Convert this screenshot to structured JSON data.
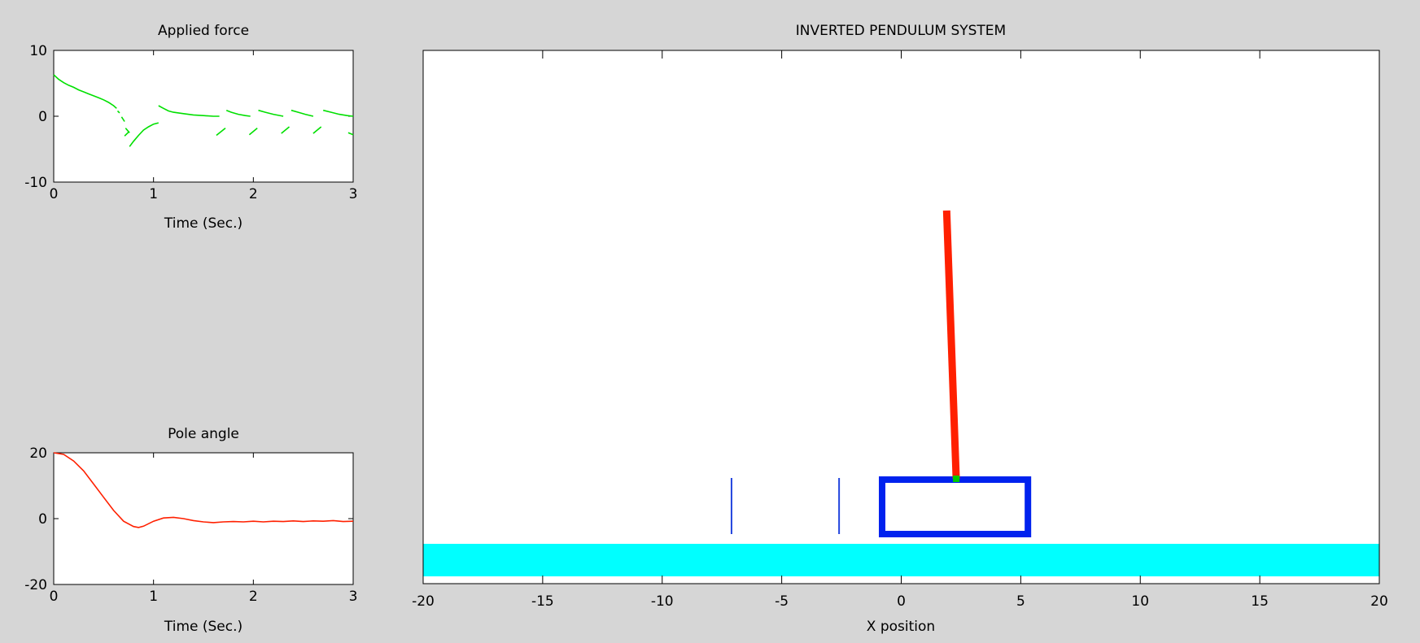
{
  "chart_data": [
    {
      "type": "line",
      "title": "Applied force",
      "xlabel": "Time (Sec.)",
      "ylabel": "",
      "xlim": [
        0,
        3
      ],
      "ylim": [
        -10,
        10
      ],
      "xticks": [
        "0",
        "1",
        "2",
        "3"
      ],
      "yticks": [
        "10",
        "0",
        "-10"
      ],
      "color": "#00e000",
      "segments": [
        {
          "x": [
            0,
            0.05,
            0.1,
            0.15,
            0.2,
            0.25,
            0.3,
            0.35,
            0.4,
            0.45,
            0.5,
            0.55,
            0.6,
            0.63
          ],
          "y": [
            6.3,
            5.6,
            5.1,
            4.7,
            4.4,
            4.0,
            3.7,
            3.4,
            3.1,
            2.8,
            2.5,
            2.1,
            1.6,
            1.2
          ]
        },
        {
          "x": [
            0.64,
            0.66
          ],
          "y": [
            0.8,
            0.5
          ]
        },
        {
          "x": [
            0.68,
            0.71
          ],
          "y": [
            -0.1,
            -0.8
          ]
        },
        {
          "x": [
            0.72,
            0.76
          ],
          "y": [
            -1.8,
            -2.5
          ]
        },
        {
          "x": [
            0.71,
            0.75
          ],
          "y": [
            -3.0,
            -2.4
          ]
        },
        {
          "x": [
            0.76,
            0.8,
            0.85,
            0.9,
            0.95,
            1.0,
            1.05
          ],
          "y": [
            -4.6,
            -3.8,
            -2.9,
            -2.1,
            -1.6,
            -1.2,
            -1.0
          ]
        },
        {
          "x": [
            1.05,
            1.1,
            1.15,
            1.2,
            1.3,
            1.4,
            1.5,
            1.6,
            1.66
          ],
          "y": [
            1.6,
            1.2,
            0.8,
            0.6,
            0.4,
            0.2,
            0.1,
            0.0,
            0.0
          ]
        },
        {
          "x": [
            1.63,
            1.72
          ],
          "y": [
            -2.9,
            -1.8
          ]
        },
        {
          "x": [
            1.73,
            1.78,
            1.85,
            1.92,
            1.97
          ],
          "y": [
            0.9,
            0.6,
            0.3,
            0.1,
            0.0
          ]
        },
        {
          "x": [
            1.96,
            2.04
          ],
          "y": [
            -2.8,
            -1.8
          ]
        },
        {
          "x": [
            2.05,
            2.12,
            2.2,
            2.3
          ],
          "y": [
            0.9,
            0.6,
            0.3,
            0.0
          ]
        },
        {
          "x": [
            2.28,
            2.36
          ],
          "y": [
            -2.6,
            -1.6
          ]
        },
        {
          "x": [
            2.38,
            2.45,
            2.52,
            2.6
          ],
          "y": [
            0.9,
            0.6,
            0.3,
            0.0
          ]
        },
        {
          "x": [
            2.6,
            2.68
          ],
          "y": [
            -2.6,
            -1.6
          ]
        },
        {
          "x": [
            2.7,
            2.78,
            2.86,
            2.94,
            3.0
          ],
          "y": [
            0.9,
            0.6,
            0.3,
            0.1,
            0.0
          ]
        },
        {
          "x": [
            2.95,
            3.0
          ],
          "y": [
            -2.5,
            -2.8
          ]
        }
      ]
    },
    {
      "type": "line",
      "title": "Pole angle",
      "xlabel": "Time (Sec.)",
      "ylabel": "",
      "xlim": [
        0,
        3
      ],
      "ylim": [
        -20,
        20
      ],
      "xticks": [
        "0",
        "1",
        "2",
        "3"
      ],
      "yticks": [
        "20",
        "0",
        "-20"
      ],
      "color": "#ff2000",
      "segments": [
        {
          "x": [
            0,
            0.1,
            0.2,
            0.3,
            0.4,
            0.5,
            0.6,
            0.7,
            0.8,
            0.85,
            0.9,
            1.0,
            1.1,
            1.2,
            1.3,
            1.4,
            1.5,
            1.6,
            1.7,
            1.8,
            1.9,
            2.0,
            2.1,
            2.2,
            2.3,
            2.4,
            2.5,
            2.6,
            2.7,
            2.8,
            2.9,
            3.0
          ],
          "y": [
            20,
            19.5,
            17.5,
            14.5,
            10.5,
            6.5,
            2.5,
            -0.8,
            -2.4,
            -2.7,
            -2.3,
            -0.8,
            0.2,
            0.4,
            0.0,
            -0.6,
            -1.0,
            -1.2,
            -1.0,
            -0.9,
            -1.0,
            -0.8,
            -1.0,
            -0.8,
            -0.9,
            -0.7,
            -0.9,
            -0.7,
            -0.8,
            -0.6,
            -0.9,
            -0.8
          ]
        }
      ]
    },
    {
      "type": "diagram",
      "title": "INVERTED PENDULUM SYSTEM",
      "xlabel": "X position",
      "ylabel": "",
      "xlim": [
        -20,
        20
      ],
      "xticks": [
        "-20",
        "-15",
        "-10",
        "-5",
        "0",
        "5",
        "10",
        "15",
        "20"
      ],
      "cart": {
        "x_left": -0.8,
        "x_right": 5.3,
        "color": "#0022ee"
      },
      "pole": {
        "base_x": 2.3,
        "tip_x": 1.9,
        "color": "#ff2000"
      },
      "pivot_color": "#00cc00",
      "track_color": "#00ffff",
      "markers": [
        -7.1,
        -2.6
      ],
      "marker_color": "#2244dd"
    }
  ]
}
